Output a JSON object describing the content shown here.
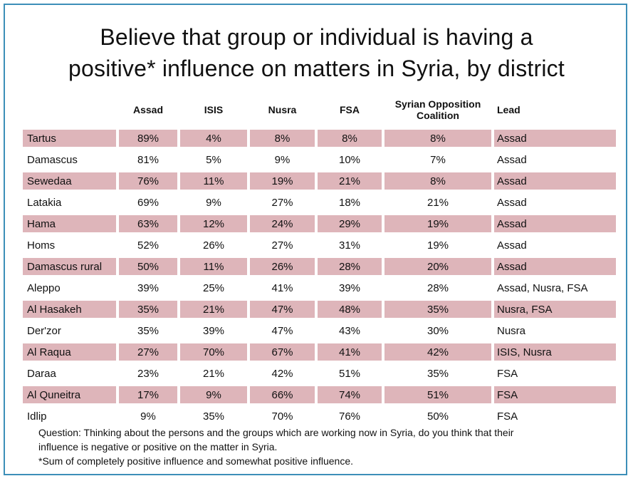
{
  "title_line1": "Believe that group or individual is having a",
  "title_line2": "positive* influence on matters in Syria, by district",
  "notes": {
    "question": "Question: Thinking about the persons and the groups which are working now in Syria, do you think that their",
    "question_cont": "influence is negative or positive on the matter in Syria.",
    "footnote": "*Sum of completely positive influence and somewhat positive influence."
  },
  "colors": {
    "shade": "#deb5ba",
    "border": "#3d8fb8"
  },
  "chart_data": {
    "type": "table",
    "title": "Believe that group or individual is having a positive* influence on matters in Syria, by district",
    "columns": [
      "",
      "Assad",
      "ISIS",
      "Nusra",
      "FSA",
      "Syrian Opposition Coalition",
      "Lead"
    ],
    "header_coalition_line1": "Syrian Opposition",
    "header_coalition_line2": "Coalition",
    "rows": [
      [
        "Tartus",
        "89%",
        "4%",
        "8%",
        "8%",
        "8%",
        "Assad"
      ],
      [
        "Damascus",
        "81%",
        "5%",
        "9%",
        "10%",
        "7%",
        "Assad"
      ],
      [
        "Sewedaa",
        "76%",
        "11%",
        "19%",
        "21%",
        "8%",
        "Assad"
      ],
      [
        "Latakia",
        "69%",
        "9%",
        "27%",
        "18%",
        "21%",
        "Assad"
      ],
      [
        "Hama",
        "63%",
        "12%",
        "24%",
        "29%",
        "19%",
        "Assad"
      ],
      [
        "Homs",
        "52%",
        "26%",
        "27%",
        "31%",
        "19%",
        "Assad"
      ],
      [
        "Damascus rural",
        "50%",
        "11%",
        "26%",
        "28%",
        "20%",
        "Assad"
      ],
      [
        "Aleppo",
        "39%",
        "25%",
        "41%",
        "39%",
        "28%",
        "Assad, Nusra, FSA"
      ],
      [
        "Al Hasakeh",
        "35%",
        "21%",
        "47%",
        "48%",
        "35%",
        "Nusra, FSA"
      ],
      [
        "Der'zor",
        "35%",
        "39%",
        "47%",
        "43%",
        "30%",
        "Nusra"
      ],
      [
        "Al Raqua",
        "27%",
        "70%",
        "67%",
        "41%",
        "42%",
        "ISIS, Nusra"
      ],
      [
        "Daraa",
        "23%",
        "21%",
        "42%",
        "51%",
        "35%",
        "FSA"
      ],
      [
        "Al Quneitra",
        "17%",
        "9%",
        "66%",
        "74%",
        "51%",
        "FSA"
      ],
      [
        "Idlip",
        "9%",
        "35%",
        "70%",
        "76%",
        "50%",
        "FSA"
      ]
    ]
  }
}
